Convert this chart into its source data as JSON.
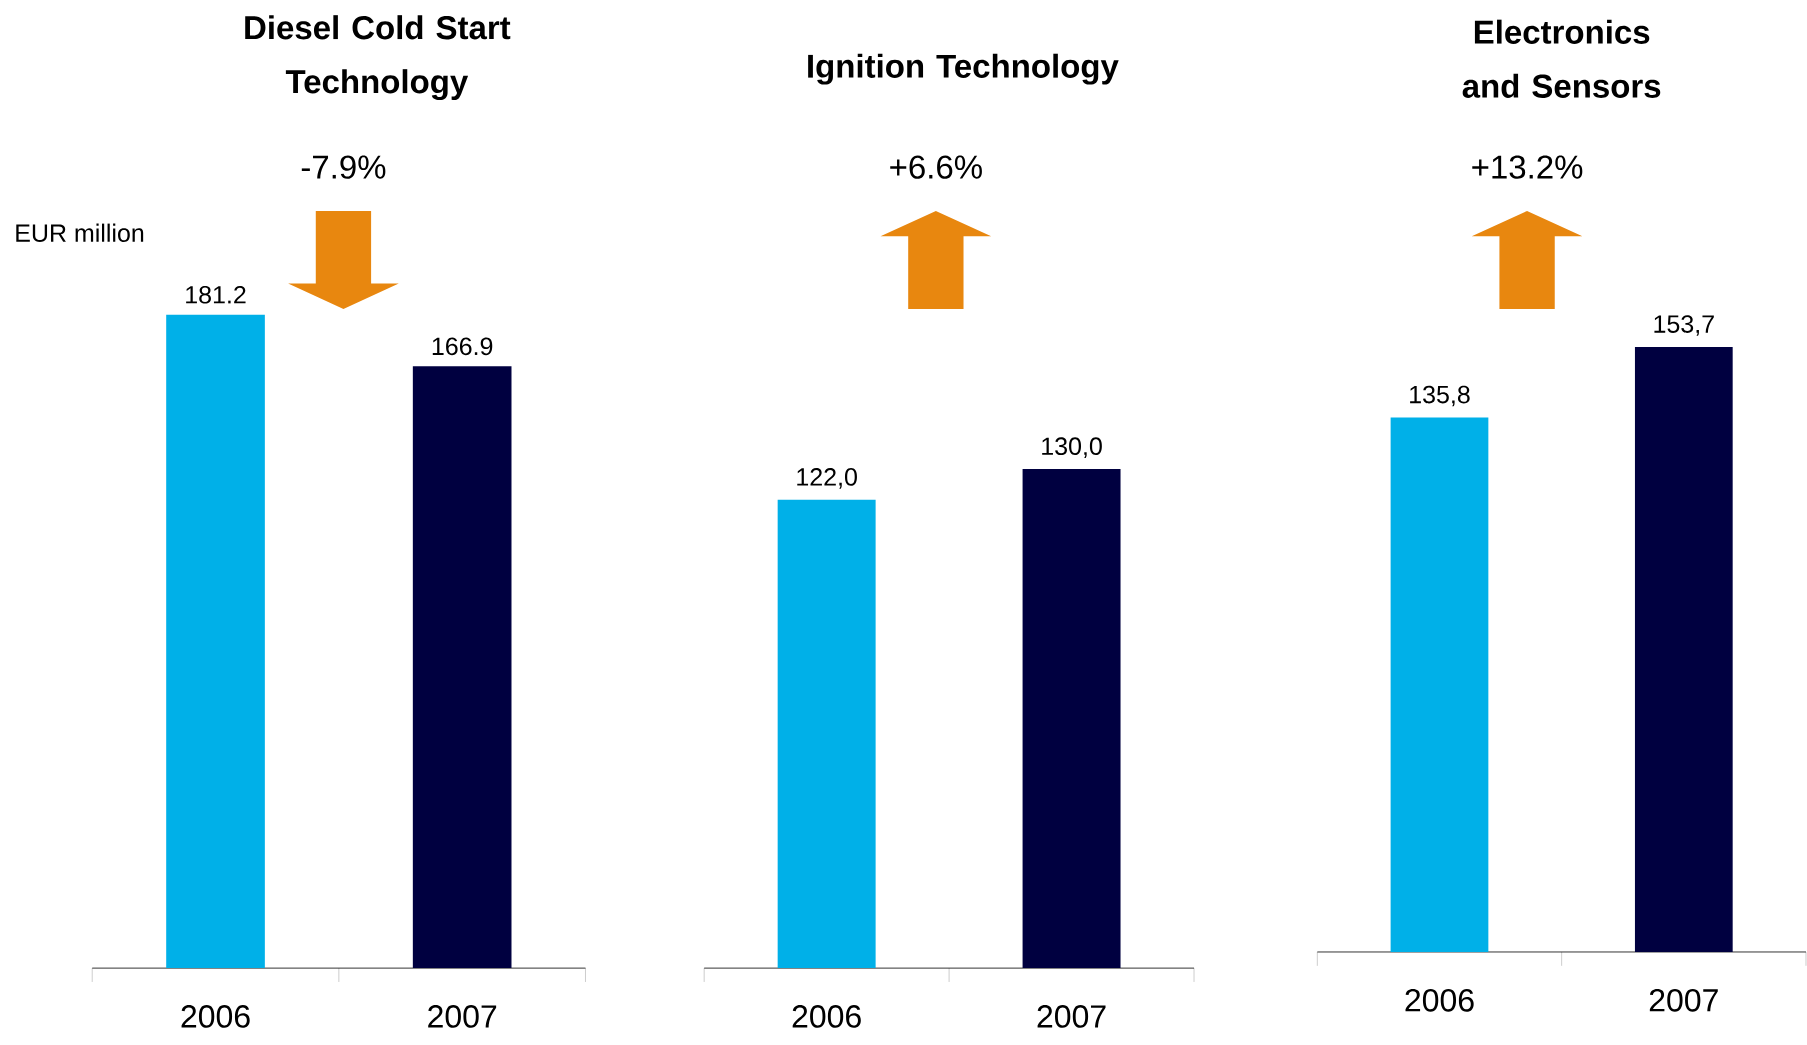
{
  "chart_data": [
    {
      "type": "bar",
      "title": "Diesel Cold Start Technology",
      "ylabel": "EUR million",
      "categories": [
        "2006",
        "2007"
      ],
      "values": [
        181.2,
        166.9
      ],
      "colors": [
        "#00b0e8",
        "#000040"
      ],
      "value_labels": [
        "181.2",
        "166.9"
      ],
      "annotations": [
        "-7.9%"
      ]
    },
    {
      "type": "bar",
      "title": "Ignition Technology",
      "categories": [
        "2006",
        "2007"
      ],
      "values": [
        122.0,
        130.0
      ],
      "colors": [
        "#00b0e8",
        "#000040"
      ],
      "value_labels": [
        "122,0",
        "130,0"
      ],
      "annotations": [
        "+6.6%"
      ]
    },
    {
      "type": "bar",
      "title": "Electronics and Sensors",
      "categories": [
        "2006",
        "2007"
      ],
      "values": [
        135.8,
        153.7
      ],
      "colors": [
        "#00b0e8",
        "#000040"
      ],
      "value_labels": [
        "135,8",
        "153,7"
      ],
      "annotations": [
        "+13.2%"
      ]
    }
  ]
}
